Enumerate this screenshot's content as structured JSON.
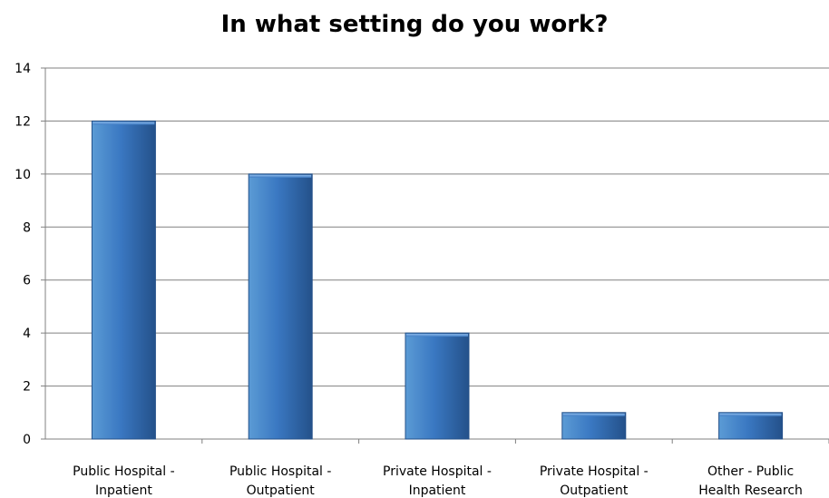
{
  "chart_data": {
    "type": "bar",
    "title": "In what setting do you work?",
    "xlabel": "",
    "ylabel": "",
    "ylim": [
      0,
      14
    ],
    "yticks": [
      0,
      2,
      4,
      6,
      8,
      10,
      12,
      14
    ],
    "grid": true,
    "legend": "none",
    "categories": [
      [
        "Public Hospital -",
        "Inpatient"
      ],
      [
        "Public Hospital -",
        "Outpatient"
      ],
      [
        "Private Hospital -",
        "Inpatient"
      ],
      [
        "Private Hospital -",
        "Outpatient"
      ],
      [
        "Other - Public",
        "Health Research"
      ]
    ],
    "values": [
      12,
      10,
      4,
      1,
      1
    ],
    "colors": {
      "bar_light": "#5b9bd5",
      "bar_mid": "#3a78c2",
      "bar_dark": "#24518a",
      "grid": "#808080",
      "axis": "#808080"
    }
  }
}
